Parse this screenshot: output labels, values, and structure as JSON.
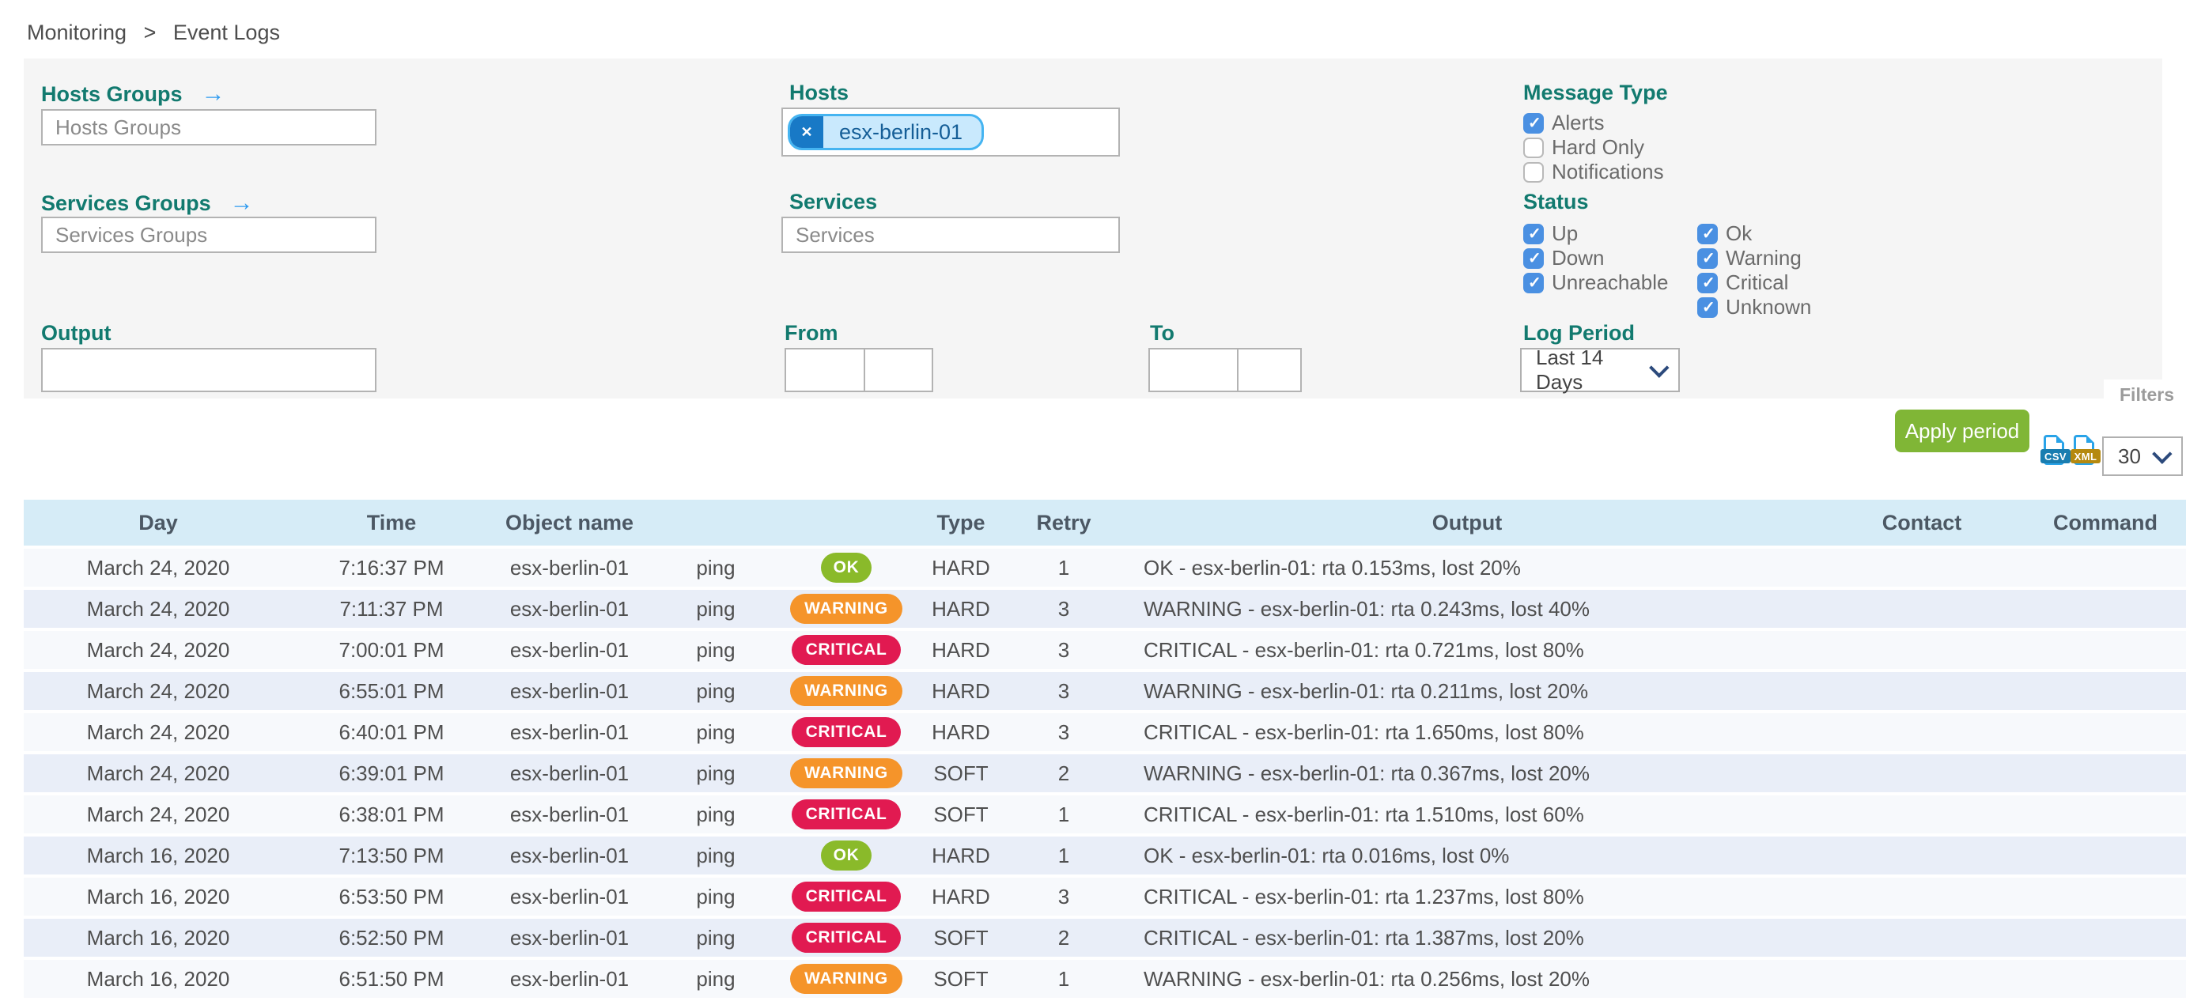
{
  "breadcrumb": {
    "items": [
      "Monitoring",
      "Event Logs"
    ],
    "separator": ">"
  },
  "filters": {
    "hosts_groups": {
      "label": "Hosts Groups",
      "placeholder": "Hosts Groups"
    },
    "hosts": {
      "label": "Hosts",
      "tags": [
        "esx-berlin-01"
      ],
      "remove_icon": "✕"
    },
    "services_groups": {
      "label": "Services Groups",
      "placeholder": "Services Groups"
    },
    "services": {
      "label": "Services",
      "placeholder": "Services"
    },
    "output": {
      "label": "Output",
      "value": ""
    },
    "from": {
      "label": "From",
      "date": "",
      "time": ""
    },
    "to": {
      "label": "To",
      "date": "",
      "time": ""
    },
    "message_type": {
      "label": "Message Type",
      "options": [
        {
          "label": "Alerts",
          "checked": true
        },
        {
          "label": "Hard Only",
          "checked": false
        },
        {
          "label": "Notifications",
          "checked": false
        }
      ]
    },
    "status": {
      "label": "Status",
      "host_options": [
        {
          "label": "Up",
          "checked": true
        },
        {
          "label": "Down",
          "checked": true
        },
        {
          "label": "Unreachable",
          "checked": true
        }
      ],
      "service_options": [
        {
          "label": "Ok",
          "checked": true
        },
        {
          "label": "Warning",
          "checked": true
        },
        {
          "label": "Critical",
          "checked": true
        },
        {
          "label": "Unknown",
          "checked": true
        }
      ]
    },
    "log_period": {
      "label": "Log Period",
      "selected": "Last 14 Days"
    },
    "apply_label": "Apply period",
    "panel_toggle_label": "Filters"
  },
  "toolbar": {
    "csv_label": "CSV",
    "xml_label": "XML",
    "page_size": "30"
  },
  "table": {
    "columns": [
      "Day",
      "Time",
      "Object name",
      "",
      "",
      "Type",
      "Retry",
      "Output",
      "Contact",
      "Command"
    ],
    "rows": [
      {
        "day": "March 24, 2020",
        "time": "7:16:37 PM",
        "object": "esx-berlin-01",
        "service": "ping",
        "status": "OK",
        "type": "HARD",
        "retry": "1",
        "output": "OK - esx-berlin-01: rta 0.153ms, lost 20%",
        "contact": "",
        "command": ""
      },
      {
        "day": "March 24, 2020",
        "time": "7:11:37 PM",
        "object": "esx-berlin-01",
        "service": "ping",
        "status": "WARNING",
        "type": "HARD",
        "retry": "3",
        "output": "WARNING - esx-berlin-01: rta 0.243ms, lost 40%",
        "contact": "",
        "command": ""
      },
      {
        "day": "March 24, 2020",
        "time": "7:00:01 PM",
        "object": "esx-berlin-01",
        "service": "ping",
        "status": "CRITICAL",
        "type": "HARD",
        "retry": "3",
        "output": "CRITICAL - esx-berlin-01: rta 0.721ms, lost 80%",
        "contact": "",
        "command": ""
      },
      {
        "day": "March 24, 2020",
        "time": "6:55:01 PM",
        "object": "esx-berlin-01",
        "service": "ping",
        "status": "WARNING",
        "type": "HARD",
        "retry": "3",
        "output": "WARNING - esx-berlin-01: rta 0.211ms, lost 20%",
        "contact": "",
        "command": ""
      },
      {
        "day": "March 24, 2020",
        "time": "6:40:01 PM",
        "object": "esx-berlin-01",
        "service": "ping",
        "status": "CRITICAL",
        "type": "HARD",
        "retry": "3",
        "output": "CRITICAL - esx-berlin-01: rta 1.650ms, lost 80%",
        "contact": "",
        "command": ""
      },
      {
        "day": "March 24, 2020",
        "time": "6:39:01 PM",
        "object": "esx-berlin-01",
        "service": "ping",
        "status": "WARNING",
        "type": "SOFT",
        "retry": "2",
        "output": "WARNING - esx-berlin-01: rta 0.367ms, lost 20%",
        "contact": "",
        "command": ""
      },
      {
        "day": "March 24, 2020",
        "time": "6:38:01 PM",
        "object": "esx-berlin-01",
        "service": "ping",
        "status": "CRITICAL",
        "type": "SOFT",
        "retry": "1",
        "output": "CRITICAL - esx-berlin-01: rta 1.510ms, lost 60%",
        "contact": "",
        "command": ""
      },
      {
        "day": "March 16, 2020",
        "time": "7:13:50 PM",
        "object": "esx-berlin-01",
        "service": "ping",
        "status": "OK",
        "type": "HARD",
        "retry": "1",
        "output": "OK - esx-berlin-01: rta 0.016ms, lost 0%",
        "contact": "",
        "command": ""
      },
      {
        "day": "March 16, 2020",
        "time": "6:53:50 PM",
        "object": "esx-berlin-01",
        "service": "ping",
        "status": "CRITICAL",
        "type": "HARD",
        "retry": "3",
        "output": "CRITICAL - esx-berlin-01: rta 1.237ms, lost 80%",
        "contact": "",
        "command": ""
      },
      {
        "day": "March 16, 2020",
        "time": "6:52:50 PM",
        "object": "esx-berlin-01",
        "service": "ping",
        "status": "CRITICAL",
        "type": "SOFT",
        "retry": "2",
        "output": "CRITICAL - esx-berlin-01: rta 1.387ms, lost 20%",
        "contact": "",
        "command": ""
      },
      {
        "day": "March 16, 2020",
        "time": "6:51:50 PM",
        "object": "esx-berlin-01",
        "service": "ping",
        "status": "WARNING",
        "type": "SOFT",
        "retry": "1",
        "output": "WARNING - esx-berlin-01: rta 0.256ms, lost 20%",
        "contact": "",
        "command": ""
      }
    ]
  },
  "colors": {
    "accent_teal": "#127a6f",
    "checkbox_blue": "#4a90e2",
    "ok_green": "#8aba2a",
    "warning_orange": "#f5942a",
    "critical_red": "#e11a51",
    "apply_green": "#80b636",
    "table_header_bg": "#d6ecf7",
    "row_light": "#f7f9fc",
    "row_dark": "#e9eef8",
    "tag_bg": "#c9e9fd",
    "tag_border": "#45b4f1",
    "tag_x_bg": "#1879c6",
    "export_blue": "#29a3e8",
    "csv_band": "#1a7db0",
    "xml_band": "#b5890f"
  }
}
